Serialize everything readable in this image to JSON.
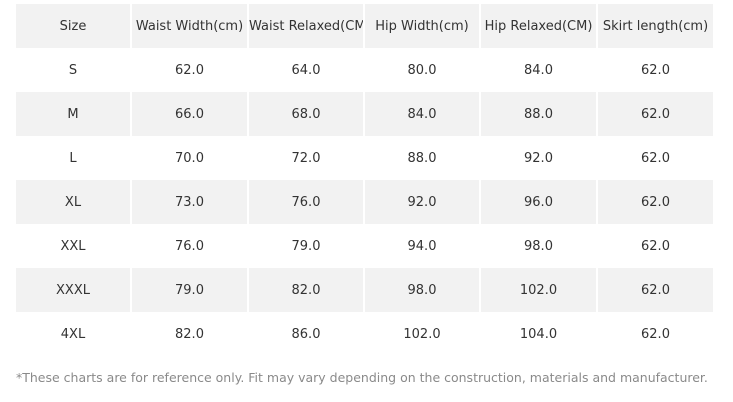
{
  "size_chart": {
    "headers": [
      "Size",
      "Waist Width(cm)",
      "Waist Relaxed(CM)",
      "Hip Width(cm)",
      "Hip Relaxed(CM)",
      "Skirt length(cm)"
    ],
    "rows": [
      [
        "S",
        "62.0",
        "64.0",
        "80.0",
        "84.0",
        "62.0"
      ],
      [
        "M",
        "66.0",
        "68.0",
        "84.0",
        "88.0",
        "62.0"
      ],
      [
        "L",
        "70.0",
        "72.0",
        "88.0",
        "92.0",
        "62.0"
      ],
      [
        "XL",
        "73.0",
        "76.0",
        "92.0",
        "96.0",
        "62.0"
      ],
      [
        "XXL",
        "76.0",
        "79.0",
        "94.0",
        "98.0",
        "62.0"
      ],
      [
        "XXXL",
        "79.0",
        "82.0",
        "98.0",
        "102.0",
        "62.0"
      ],
      [
        "4XL",
        "82.0",
        "86.0",
        "102.0",
        "104.0",
        "62.0"
      ]
    ]
  },
  "footnote": "*These charts are for reference only. Fit may vary depending on the construction, materials and manufacturer.",
  "colors": {
    "shaded_row": "#f2f2f2",
    "text": "#333333",
    "footnote_text": "#8a8a8a"
  }
}
